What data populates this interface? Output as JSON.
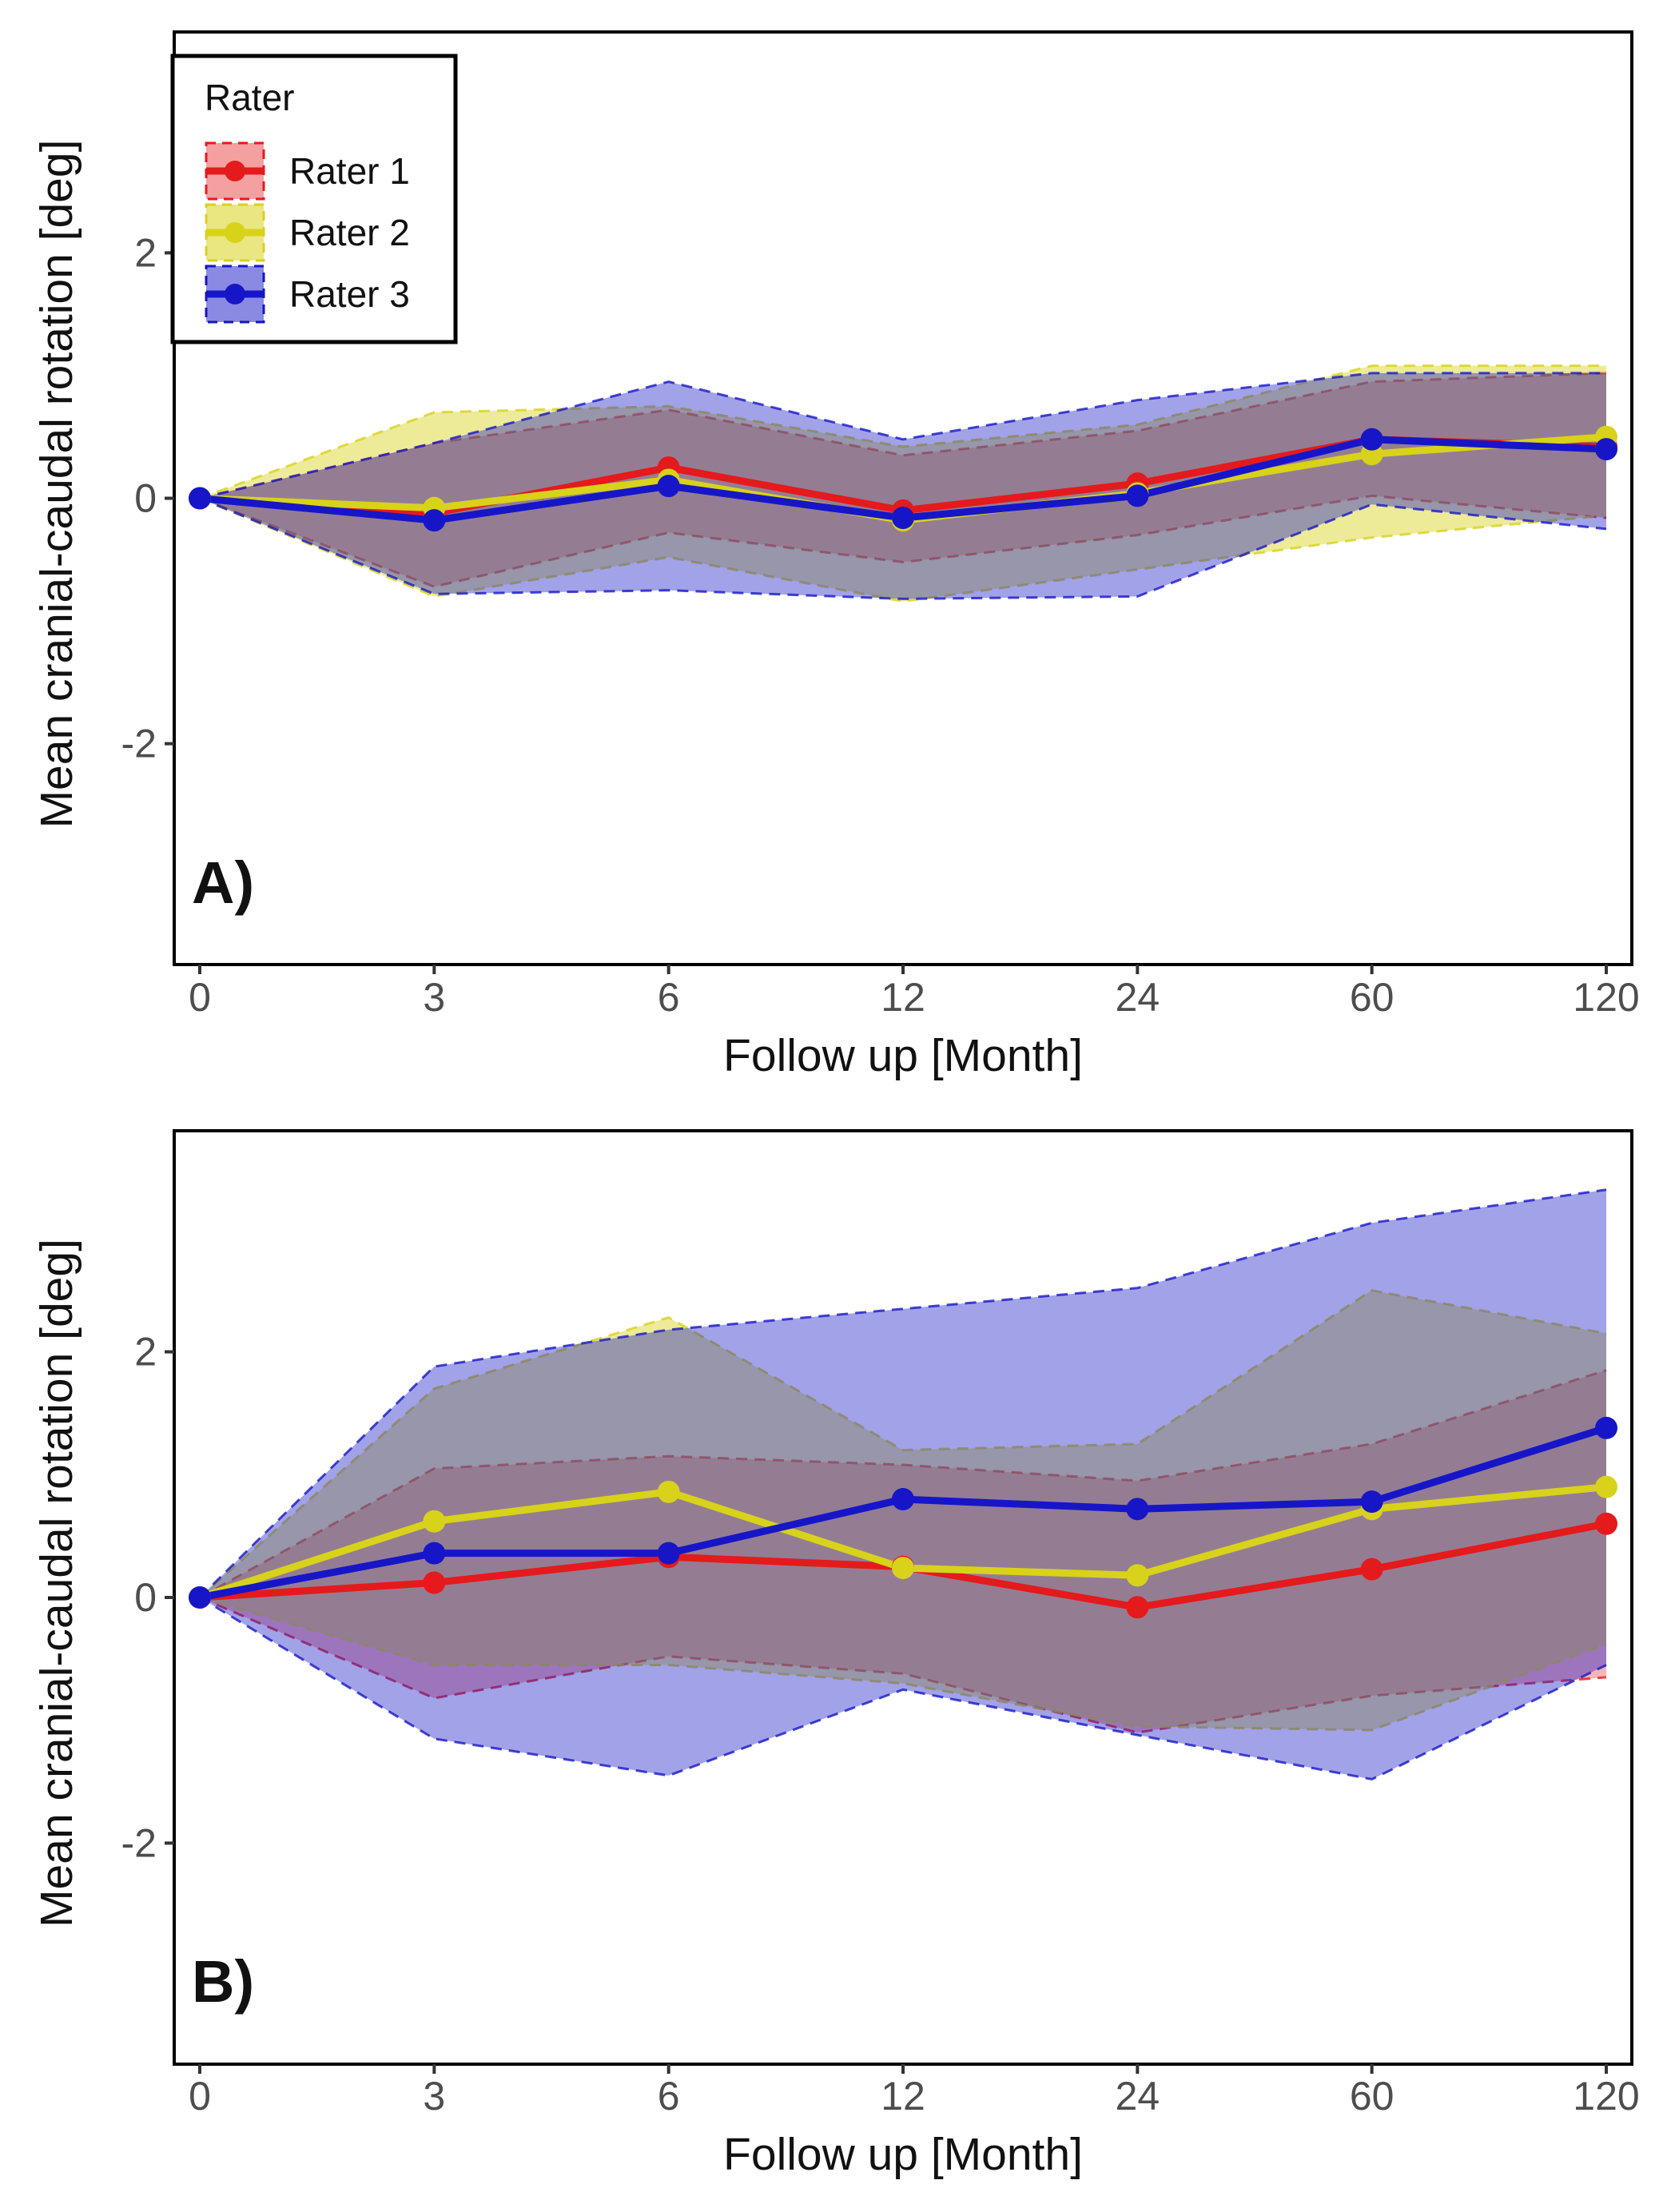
{
  "colors": {
    "rater1": "#e41a1c",
    "rater2": "#d8d21a",
    "rater3": "#1616c8"
  },
  "legend": {
    "title": "Rater",
    "entries": [
      "Rater 1",
      "Rater 2",
      "Rater 3"
    ]
  },
  "chart_data": [
    {
      "type": "line",
      "panel_label": "A)",
      "xlabel": "Follow up [Month]",
      "ylabel": "Mean cranial-caudal rotation [deg]",
      "categories": [
        "0",
        "3",
        "6",
        "12",
        "24",
        "60",
        "120"
      ],
      "ylim": [
        -3.8,
        3.8
      ],
      "yticks": [
        -2,
        0,
        2
      ],
      "ytick_labels": [
        "-2",
        "0",
        "2"
      ],
      "grid": false,
      "legend_position": "top-left",
      "series": [
        {
          "name": "Rater 1",
          "values": [
            0,
            -0.12,
            0.25,
            -0.1,
            0.12,
            0.48,
            0.42
          ],
          "upper": [
            0,
            0.45,
            0.72,
            0.35,
            0.55,
            0.95,
            1.02
          ],
          "lower": [
            0,
            -0.72,
            -0.28,
            -0.52,
            -0.3,
            0.02,
            -0.16
          ]
        },
        {
          "name": "Rater 2",
          "values": [
            0,
            -0.08,
            0.15,
            -0.18,
            0.04,
            0.36,
            0.5
          ],
          "upper": [
            0,
            0.7,
            0.75,
            0.42,
            0.6,
            1.08,
            1.08
          ],
          "lower": [
            0,
            -0.8,
            -0.48,
            -0.84,
            -0.58,
            -0.32,
            -0.14
          ]
        },
        {
          "name": "Rater 3",
          "values": [
            0,
            -0.18,
            0.1,
            -0.16,
            0.02,
            0.48,
            0.4
          ],
          "upper": [
            0,
            0.45,
            0.95,
            0.48,
            0.8,
            1.02,
            1.02
          ],
          "lower": [
            0,
            -0.78,
            -0.75,
            -0.82,
            -0.8,
            -0.05,
            -0.25
          ]
        }
      ]
    },
    {
      "type": "line",
      "panel_label": "B)",
      "xlabel": "Follow up [Month]",
      "ylabel": "Mean cranial-caudal rotation [deg]",
      "categories": [
        "0",
        "3",
        "6",
        "12",
        "24",
        "60",
        "120"
      ],
      "ylim": [
        -3.8,
        3.8
      ],
      "yticks": [
        -2,
        0,
        2
      ],
      "ytick_labels": [
        "-2",
        "0",
        "2"
      ],
      "grid": false,
      "series": [
        {
          "name": "Rater 1",
          "values": [
            0,
            0.12,
            0.33,
            0.25,
            -0.08,
            0.23,
            0.6
          ],
          "upper": [
            0,
            1.05,
            1.15,
            1.08,
            0.95,
            1.25,
            1.85
          ],
          "lower": [
            0,
            -0.82,
            -0.48,
            -0.62,
            -1.1,
            -0.8,
            -0.65
          ]
        },
        {
          "name": "Rater 2",
          "values": [
            0,
            0.62,
            0.86,
            0.24,
            0.18,
            0.72,
            0.9
          ],
          "upper": [
            0,
            1.7,
            2.28,
            1.2,
            1.25,
            2.5,
            2.15
          ],
          "lower": [
            0,
            -0.55,
            -0.55,
            -0.7,
            -1.05,
            -1.08,
            -0.38
          ]
        },
        {
          "name": "Rater 3",
          "values": [
            0,
            0.36,
            0.36,
            0.8,
            0.72,
            0.78,
            1.38
          ],
          "upper": [
            0,
            1.88,
            2.18,
            2.35,
            2.52,
            3.05,
            3.32
          ],
          "lower": [
            0,
            -1.15,
            -1.45,
            -0.75,
            -1.12,
            -1.48,
            -0.55
          ]
        }
      ]
    }
  ]
}
